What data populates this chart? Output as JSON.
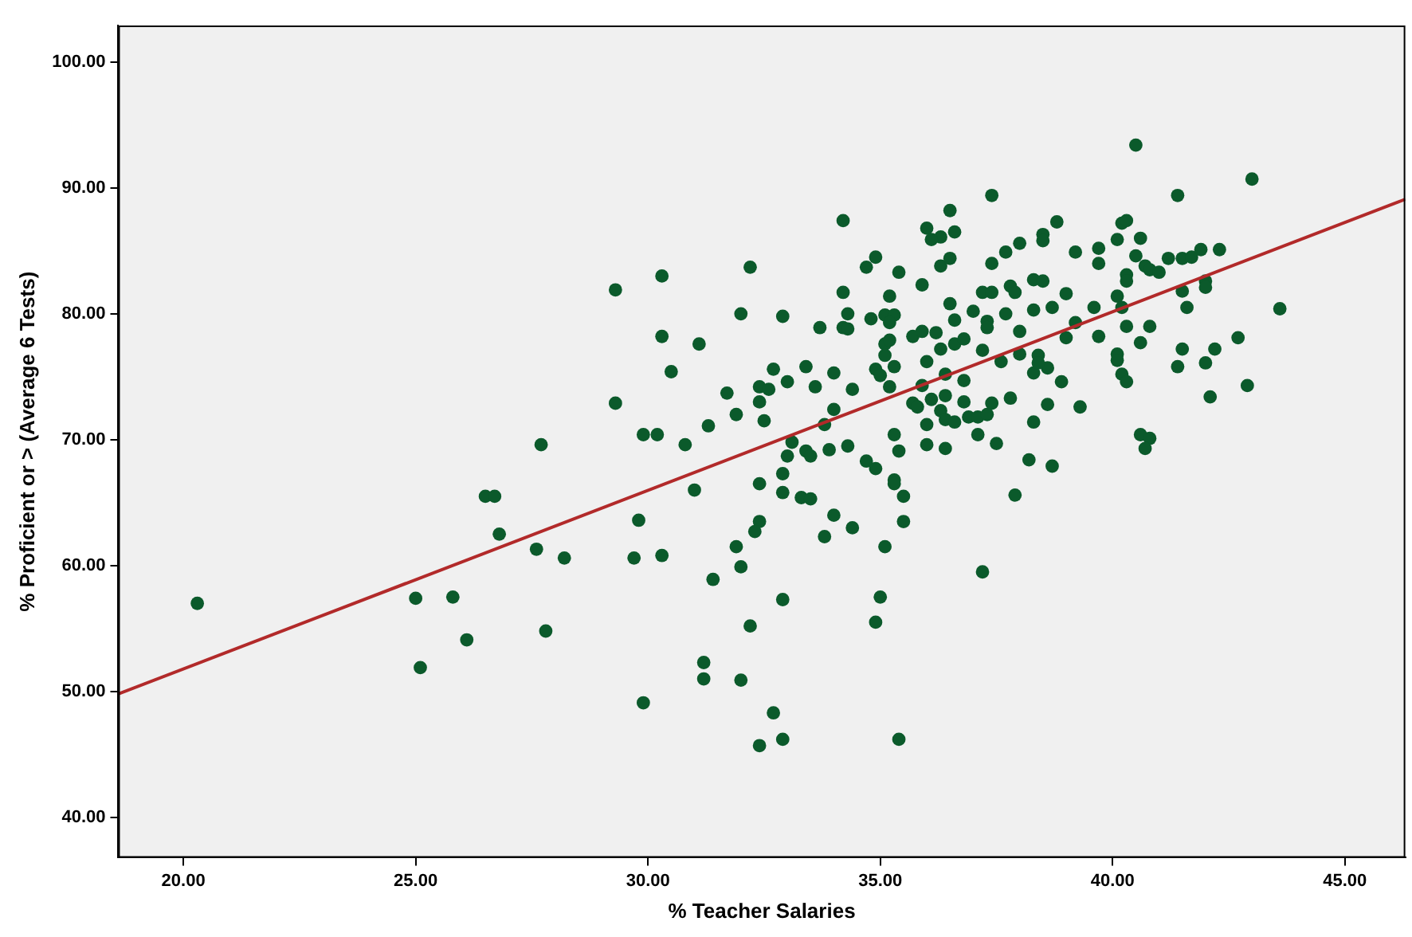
{
  "chart_data": {
    "type": "scatter",
    "xlabel": "% Teacher Salaries",
    "ylabel": "% Proficient or > (Average 6 Tests)",
    "xlim": [
      18.6,
      46.3
    ],
    "ylim": [
      36.8,
      102.9
    ],
    "xticks": [
      {
        "value": 20,
        "label": "20.00"
      },
      {
        "value": 25,
        "label": "25.00"
      },
      {
        "value": 30,
        "label": "30.00"
      },
      {
        "value": 35,
        "label": "35.00"
      },
      {
        "value": 40,
        "label": "40.00"
      },
      {
        "value": 45,
        "label": "45.00"
      }
    ],
    "yticks": [
      {
        "value": 40,
        "label": "40.00"
      },
      {
        "value": 50,
        "label": "50.00"
      },
      {
        "value": 60,
        "label": "60.00"
      },
      {
        "value": 70,
        "label": "70.00"
      },
      {
        "value": 80,
        "label": "80.00"
      },
      {
        "value": 90,
        "label": "90.00"
      },
      {
        "value": 100,
        "label": "100.00"
      }
    ],
    "grid": false,
    "legend": false,
    "marker": "circle",
    "series": [
      {
        "color": "#0b5a2b",
        "x": [
          20.3,
          29.3,
          30.3,
          32.2,
          32.0,
          32.9,
          30.3,
          31.1,
          30.5,
          29.3,
          27.7,
          29.9,
          30.2,
          30.8,
          31.3,
          31.7,
          31.9,
          32.4,
          32.6,
          32.4,
          32.5,
          32.7,
          33.0,
          33.4,
          33.6,
          34.0,
          33.7,
          34.2,
          34.2,
          34.3,
          34.0,
          33.8,
          33.1,
          33.0,
          33.4,
          33.5,
          33.9,
          34.3,
          32.9,
          32.4,
          32.9,
          33.3,
          33.5,
          34.0,
          33.8,
          34.4,
          32.4,
          32.3,
          31.0,
          29.8,
          31.9,
          32.0,
          31.4,
          32.9,
          32.2,
          31.2,
          31.2,
          32.0,
          29.9,
          32.7,
          32.4,
          32.9,
          29.7,
          30.3,
          28.2,
          27.6,
          26.8,
          26.5,
          26.7,
          25.0,
          25.8,
          26.1,
          25.1,
          27.8,
          34.2,
          37.4,
          36.5,
          36.0,
          36.3,
          36.1,
          36.6,
          34.9,
          34.7,
          35.4,
          36.3,
          36.5,
          35.9,
          35.2,
          34.8,
          35.1,
          35.3,
          35.2,
          34.3,
          36.5,
          36.6,
          37.0,
          37.2,
          37.4,
          37.3,
          37.3,
          37.7,
          35.7,
          35.9,
          36.2,
          35.1,
          35.2,
          35.1,
          35.3,
          34.9,
          35.0,
          34.4,
          35.2,
          36.0,
          36.3,
          36.6,
          36.8,
          36.4,
          35.9,
          36.4,
          36.8,
          35.7,
          35.8,
          36.1,
          36.3,
          36.4,
          36.6,
          36.8,
          36.9,
          37.1,
          37.3,
          37.4,
          37.2,
          37.6,
          37.8,
          38.0,
          38.0,
          37.8,
          37.9,
          37.7,
          38.0,
          37.4,
          38.3,
          38.5,
          38.5,
          38.5,
          38.8,
          38.3,
          38.7,
          39.0,
          39.2,
          39.2,
          39.0,
          38.4,
          38.6,
          38.3,
          38.4,
          38.9,
          38.6,
          39.3,
          38.3,
          38.2,
          38.7,
          37.9,
          37.5,
          37.1,
          36.4,
          36.0,
          36.0,
          35.3,
          35.4,
          34.7,
          34.9,
          35.3,
          35.3,
          35.5,
          35.5,
          35.1,
          37.2,
          35.0,
          34.9,
          35.4,
          40.5,
          43.0,
          41.4,
          40.2,
          40.3,
          40.1,
          40.6,
          39.7,
          39.7,
          40.5,
          40.7,
          40.8,
          41.0,
          41.2,
          41.5,
          41.7,
          41.9,
          42.3,
          40.3,
          40.3,
          41.5,
          42.0,
          42.0,
          40.1,
          39.6,
          40.2,
          41.6,
          43.6,
          40.3,
          40.8,
          39.7,
          40.6,
          41.5,
          42.2,
          42.7,
          40.1,
          40.1,
          41.4,
          42.0,
          40.2,
          40.3,
          42.9,
          42.1,
          40.6,
          40.8,
          40.7
        ],
        "values": [
          57.0,
          81.9,
          83.0,
          83.7,
          80.0,
          79.8,
          78.2,
          77.6,
          75.4,
          72.9,
          69.6,
          70.4,
          70.4,
          69.6,
          71.1,
          73.7,
          72.0,
          74.2,
          74.0,
          73.0,
          71.5,
          75.6,
          74.6,
          75.8,
          74.2,
          75.3,
          78.9,
          81.7,
          78.9,
          80.0,
          72.4,
          71.2,
          69.8,
          68.7,
          69.1,
          68.7,
          69.2,
          69.5,
          67.3,
          66.5,
          65.8,
          65.4,
          65.3,
          64.0,
          62.3,
          63.0,
          63.5,
          62.7,
          66.0,
          63.6,
          61.5,
          59.9,
          58.9,
          57.3,
          55.2,
          52.3,
          51.0,
          50.9,
          49.1,
          48.3,
          45.7,
          46.2,
          60.6,
          60.8,
          60.6,
          61.3,
          62.5,
          65.5,
          65.5,
          57.4,
          57.5,
          54.1,
          51.9,
          54.8,
          87.4,
          89.4,
          88.2,
          86.8,
          86.1,
          85.9,
          86.5,
          84.5,
          83.7,
          83.3,
          83.8,
          84.4,
          82.3,
          81.4,
          79.6,
          79.9,
          79.9,
          79.3,
          78.8,
          80.8,
          79.5,
          80.2,
          81.7,
          81.7,
          79.4,
          78.9,
          80.0,
          78.2,
          78.6,
          78.5,
          77.6,
          77.9,
          76.7,
          75.8,
          75.6,
          75.1,
          74.0,
          74.2,
          76.2,
          77.2,
          77.6,
          78.0,
          75.2,
          74.3,
          73.5,
          74.7,
          72.9,
          72.6,
          73.2,
          72.3,
          71.6,
          71.4,
          73.0,
          71.8,
          71.8,
          72.0,
          72.9,
          77.1,
          76.2,
          73.3,
          78.6,
          76.8,
          82.2,
          81.7,
          84.9,
          85.6,
          84.0,
          82.7,
          82.6,
          86.3,
          85.8,
          87.3,
          80.3,
          80.5,
          81.6,
          84.9,
          79.3,
          78.1,
          76.7,
          75.7,
          75.3,
          76.1,
          74.6,
          72.8,
          72.6,
          71.4,
          68.4,
          67.9,
          65.6,
          69.7,
          70.4,
          69.3,
          69.6,
          71.2,
          70.4,
          69.1,
          68.3,
          67.7,
          66.8,
          66.5,
          65.5,
          63.5,
          61.5,
          59.5,
          57.5,
          55.5,
          46.2,
          93.4,
          90.7,
          89.4,
          87.2,
          87.4,
          85.9,
          86.0,
          85.2,
          84.0,
          84.6,
          83.8,
          83.5,
          83.3,
          84.4,
          84.4,
          84.5,
          85.1,
          85.1,
          83.1,
          82.6,
          81.8,
          82.6,
          82.1,
          81.4,
          80.5,
          80.5,
          80.5,
          80.4,
          79.0,
          79.0,
          78.2,
          77.7,
          77.2,
          77.2,
          78.1,
          76.8,
          76.3,
          75.8,
          76.1,
          75.2,
          74.6,
          74.3,
          73.4,
          70.4,
          70.1,
          69.3
        ]
      },
      {
        "type": "line",
        "marker": "none",
        "color": "#b22a2a",
        "x": [
          18.6,
          46.3
        ],
        "values": [
          49.8,
          89.1
        ]
      }
    ]
  }
}
